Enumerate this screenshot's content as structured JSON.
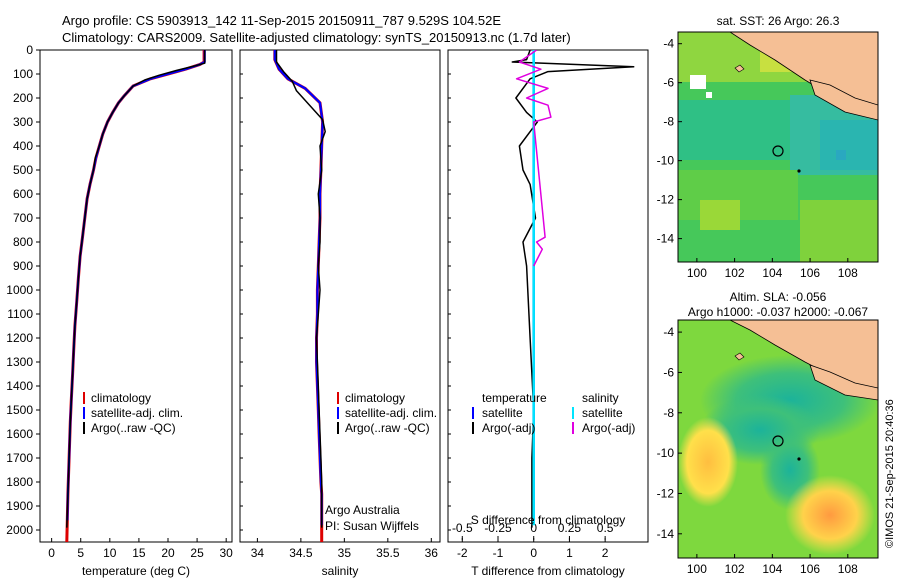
{
  "header": {
    "line1": "Argo profile: CS 5903913_142 11-Sep-2015 20150911_787 9.529S 104.52E",
    "line2": "Climatology: CARS2009. Satellite-adjusted climatology: synTS_20150913.nc (1.7d later)"
  },
  "depth_ticks": [
    0,
    100,
    200,
    300,
    400,
    500,
    600,
    700,
    800,
    900,
    1000,
    1100,
    1200,
    1300,
    1400,
    1500,
    1600,
    1700,
    1800,
    1900,
    2000
  ],
  "panels": {
    "temperature": {
      "xlabel": "temperature (deg C)",
      "xticks": [
        "0",
        "5",
        "10",
        "15",
        "20",
        "25",
        "30"
      ],
      "legend": [
        "climatology",
        "satellite-adj. clim.",
        "Argo(..raw -QC)"
      ]
    },
    "salinity": {
      "xlabel": "salinity",
      "xticks": [
        "34",
        "34.5",
        "35",
        "35.5",
        "36"
      ],
      "legend": [
        "climatology",
        "satellite-adj. clim.",
        "Argo(..raw -QC)"
      ],
      "credit1": "Argo Australia",
      "credit2": "PI: Susan Wijffels"
    },
    "difference": {
      "xlabel": "T difference from climatology",
      "xlabel_top": "S difference from climatology",
      "xticks_bottom": [
        "-2",
        "-1",
        "0",
        "1",
        "2"
      ],
      "xticks_top": [
        "-0.5",
        "-0.25",
        "0",
        "0.25",
        "0.5"
      ],
      "legend_temp_title": "temperature",
      "legend_sal_title": "salinity",
      "legend_temp": [
        "satellite",
        "Argo(-adj)"
      ],
      "legend_sal": [
        "satellite",
        "Argo(-adj)"
      ]
    }
  },
  "maps": {
    "sst": {
      "title": "sat. SST: 26 Argo: 26.3",
      "lat_ticks": [
        "-4",
        "-6",
        "-8",
        "-10",
        "-12",
        "-14"
      ],
      "lon_ticks": [
        "100",
        "102",
        "104",
        "106",
        "108"
      ]
    },
    "sla": {
      "title1": "Altim. SLA: -0.056",
      "title2": "Argo h1000: -0.037 h2000: -0.067",
      "lat_ticks": [
        "-4",
        "-6",
        "-8",
        "-10",
        "-12",
        "-14"
      ],
      "lon_ticks": [
        "100",
        "102",
        "104",
        "106",
        "108"
      ]
    }
  },
  "watermark": "©IMOS 21-Sep-2015 20:40:36",
  "colors": {
    "climatology": "#dd0000",
    "satellite": "#0000ff",
    "argo": "#000000",
    "sal_satellite": "#00e5ff",
    "sal_argo": "#e000e0",
    "land": "#f5bf95"
  },
  "chart_data": [
    {
      "type": "line",
      "panel": "temperature",
      "xlabel": "temperature (deg C)",
      "ylabel": "",
      "xlim": [
        -2,
        31
      ],
      "ylim": [
        2050,
        0
      ],
      "series": [
        {
          "name": "climatology",
          "x": [
            26.2,
            26.2,
            25.5,
            23,
            20,
            17,
            14,
            12.5,
            11.5,
            10.5,
            9.6,
            8.8,
            8.2,
            7.6,
            7.2,
            6.6,
            6.1,
            5.7,
            5.3,
            4.9,
            4.6,
            4.3,
            4.0,
            3.8,
            3.6,
            3.4,
            3.2,
            3.0,
            2.8,
            2.6
          ],
          "y": [
            0,
            50,
            60,
            80,
            100,
            120,
            150,
            190,
            220,
            260,
            300,
            350,
            400,
            450,
            500,
            560,
            620,
            700,
            780,
            860,
            950,
            1050,
            1150,
            1250,
            1350,
            1450,
            1550,
            1700,
            1850,
            2050
          ]
        },
        {
          "name": "satellite-adj. clim.",
          "x": [
            26.3,
            26.3,
            25.5,
            23,
            20,
            17,
            14,
            12.5,
            11.5,
            10.5,
            9.6,
            8.8,
            8.2,
            7.6,
            7.2,
            6.6,
            6.1,
            5.7,
            5.3,
            4.9,
            4.6,
            4.3,
            4.0,
            3.8,
            3.6,
            3.4,
            3.2,
            3.0,
            2.8,
            2.7
          ],
          "y": [
            0,
            50,
            60,
            80,
            100,
            120,
            150,
            190,
            220,
            260,
            300,
            350,
            400,
            450,
            500,
            560,
            620,
            700,
            780,
            860,
            950,
            1050,
            1150,
            1250,
            1350,
            1450,
            1550,
            1700,
            1850,
            1960
          ]
        },
        {
          "name": "Argo(..raw -QC)",
          "x": [
            26.3,
            26.3,
            24.8,
            21.5,
            18.5,
            16,
            14,
            12.5,
            11.5,
            10.5,
            9.6,
            8.8,
            8.2,
            7.5,
            7.2,
            6.6,
            6.1,
            5.7,
            5.3,
            4.9,
            4.6,
            4.3,
            4.0,
            3.8,
            3.6,
            3.4,
            3.2,
            3.0,
            2.8,
            2.6
          ],
          "y": [
            0,
            55,
            65,
            85,
            105,
            125,
            150,
            190,
            220,
            260,
            300,
            350,
            400,
            450,
            500,
            560,
            620,
            700,
            780,
            860,
            950,
            1050,
            1150,
            1250,
            1350,
            1450,
            1550,
            1700,
            1850,
            1990
          ]
        }
      ]
    },
    {
      "type": "line",
      "panel": "salinity",
      "xlabel": "salinity",
      "ylabel": "",
      "xlim": [
        33.8,
        36.1
      ],
      "ylim": [
        2050,
        0
      ],
      "series": [
        {
          "name": "climatology",
          "x": [
            34.2,
            34.2,
            34.25,
            34.35,
            34.55,
            34.72,
            34.75,
            34.74,
            34.73,
            34.72,
            34.72,
            34.71,
            34.7,
            34.69,
            34.69,
            34.68,
            34.68,
            34.69,
            34.7,
            34.71,
            34.72,
            34.73,
            34.74,
            34.74,
            34.74,
            34.74,
            34.74
          ],
          "y": [
            0,
            40,
            80,
            120,
            160,
            220,
            300,
            400,
            500,
            600,
            700,
            800,
            900,
            1000,
            1100,
            1200,
            1300,
            1400,
            1500,
            1600,
            1700,
            1800,
            1850,
            1900,
            1950,
            2000,
            2050
          ]
        },
        {
          "name": "satellite-adj. clim.",
          "x": [
            34.2,
            34.2,
            34.25,
            34.35,
            34.55,
            34.72,
            34.75,
            34.74,
            34.73,
            34.72,
            34.72,
            34.71,
            34.7,
            34.69,
            34.69,
            34.68,
            34.68,
            34.69,
            34.7,
            34.71,
            34.72,
            34.73,
            34.74,
            34.74,
            34.74,
            34.74
          ],
          "y": [
            0,
            40,
            80,
            120,
            160,
            220,
            300,
            400,
            500,
            600,
            700,
            800,
            900,
            1000,
            1100,
            1200,
            1300,
            1400,
            1500,
            1600,
            1700,
            1800,
            1850,
            1900,
            1950,
            1980
          ]
        },
        {
          "name": "Argo(..raw -QC)",
          "x": [
            34.22,
            34.22,
            34.3,
            34.4,
            34.45,
            34.6,
            34.75,
            34.78,
            34.72,
            34.74,
            34.7,
            34.72,
            34.72,
            34.7,
            34.72,
            34.7,
            34.68,
            34.69,
            34.7,
            34.71,
            34.72,
            34.73,
            34.74,
            34.74,
            34.74,
            34.74
          ],
          "y": [
            0,
            50,
            90,
            130,
            170,
            230,
            290,
            340,
            400,
            500,
            600,
            700,
            800,
            900,
            1000,
            1100,
            1200,
            1300,
            1400,
            1500,
            1600,
            1700,
            1800,
            1900,
            1950,
            1990
          ]
        }
      ]
    },
    {
      "type": "line",
      "panel": "difference",
      "xlabel": "T difference from climatology",
      "x2label": "S difference from climatology",
      "xlim": [
        -2.4,
        3.2
      ],
      "x2lim": [
        -0.6,
        0.8
      ],
      "ylim": [
        2050,
        0
      ],
      "series": [
        {
          "name": "temperature satellite",
          "x": [
            0,
            0,
            0,
            0
          ],
          "y": [
            0,
            500,
            1500,
            1960
          ]
        },
        {
          "name": "temperature Argo(-adj)",
          "x": [
            -0.1,
            -0.2,
            -0.6,
            2.8,
            0.4,
            -0.1,
            -0.5,
            -0.2,
            0.1,
            -0.4,
            -0.3,
            -0.1,
            0.05,
            -0.3,
            -0.2,
            -0.1,
            0.0,
            -0.05,
            -0.05,
            -0.05
          ],
          "y": [
            0,
            40,
            50,
            70,
            90,
            120,
            200,
            260,
            300,
            400,
            500,
            560,
            700,
            800,
            900,
            1200,
            1500,
            1700,
            1900,
            1990
          ]
        },
        {
          "name": "salinity satellite",
          "x": [
            0,
            0,
            0,
            0
          ],
          "y": [
            0,
            500,
            1500,
            1980
          ]
        },
        {
          "name": "salinity Argo(-adj)",
          "x": [
            0.02,
            -0.1,
            0.05,
            -0.12,
            0.1,
            -0.05,
            0.1,
            0.12,
            0.0,
            0.08,
            0.02,
            0.06,
            0.0
          ],
          "y": [
            0,
            50,
            80,
            120,
            160,
            200,
            230,
            280,
            300,
            780,
            800,
            830,
            900
          ]
        }
      ]
    }
  ]
}
